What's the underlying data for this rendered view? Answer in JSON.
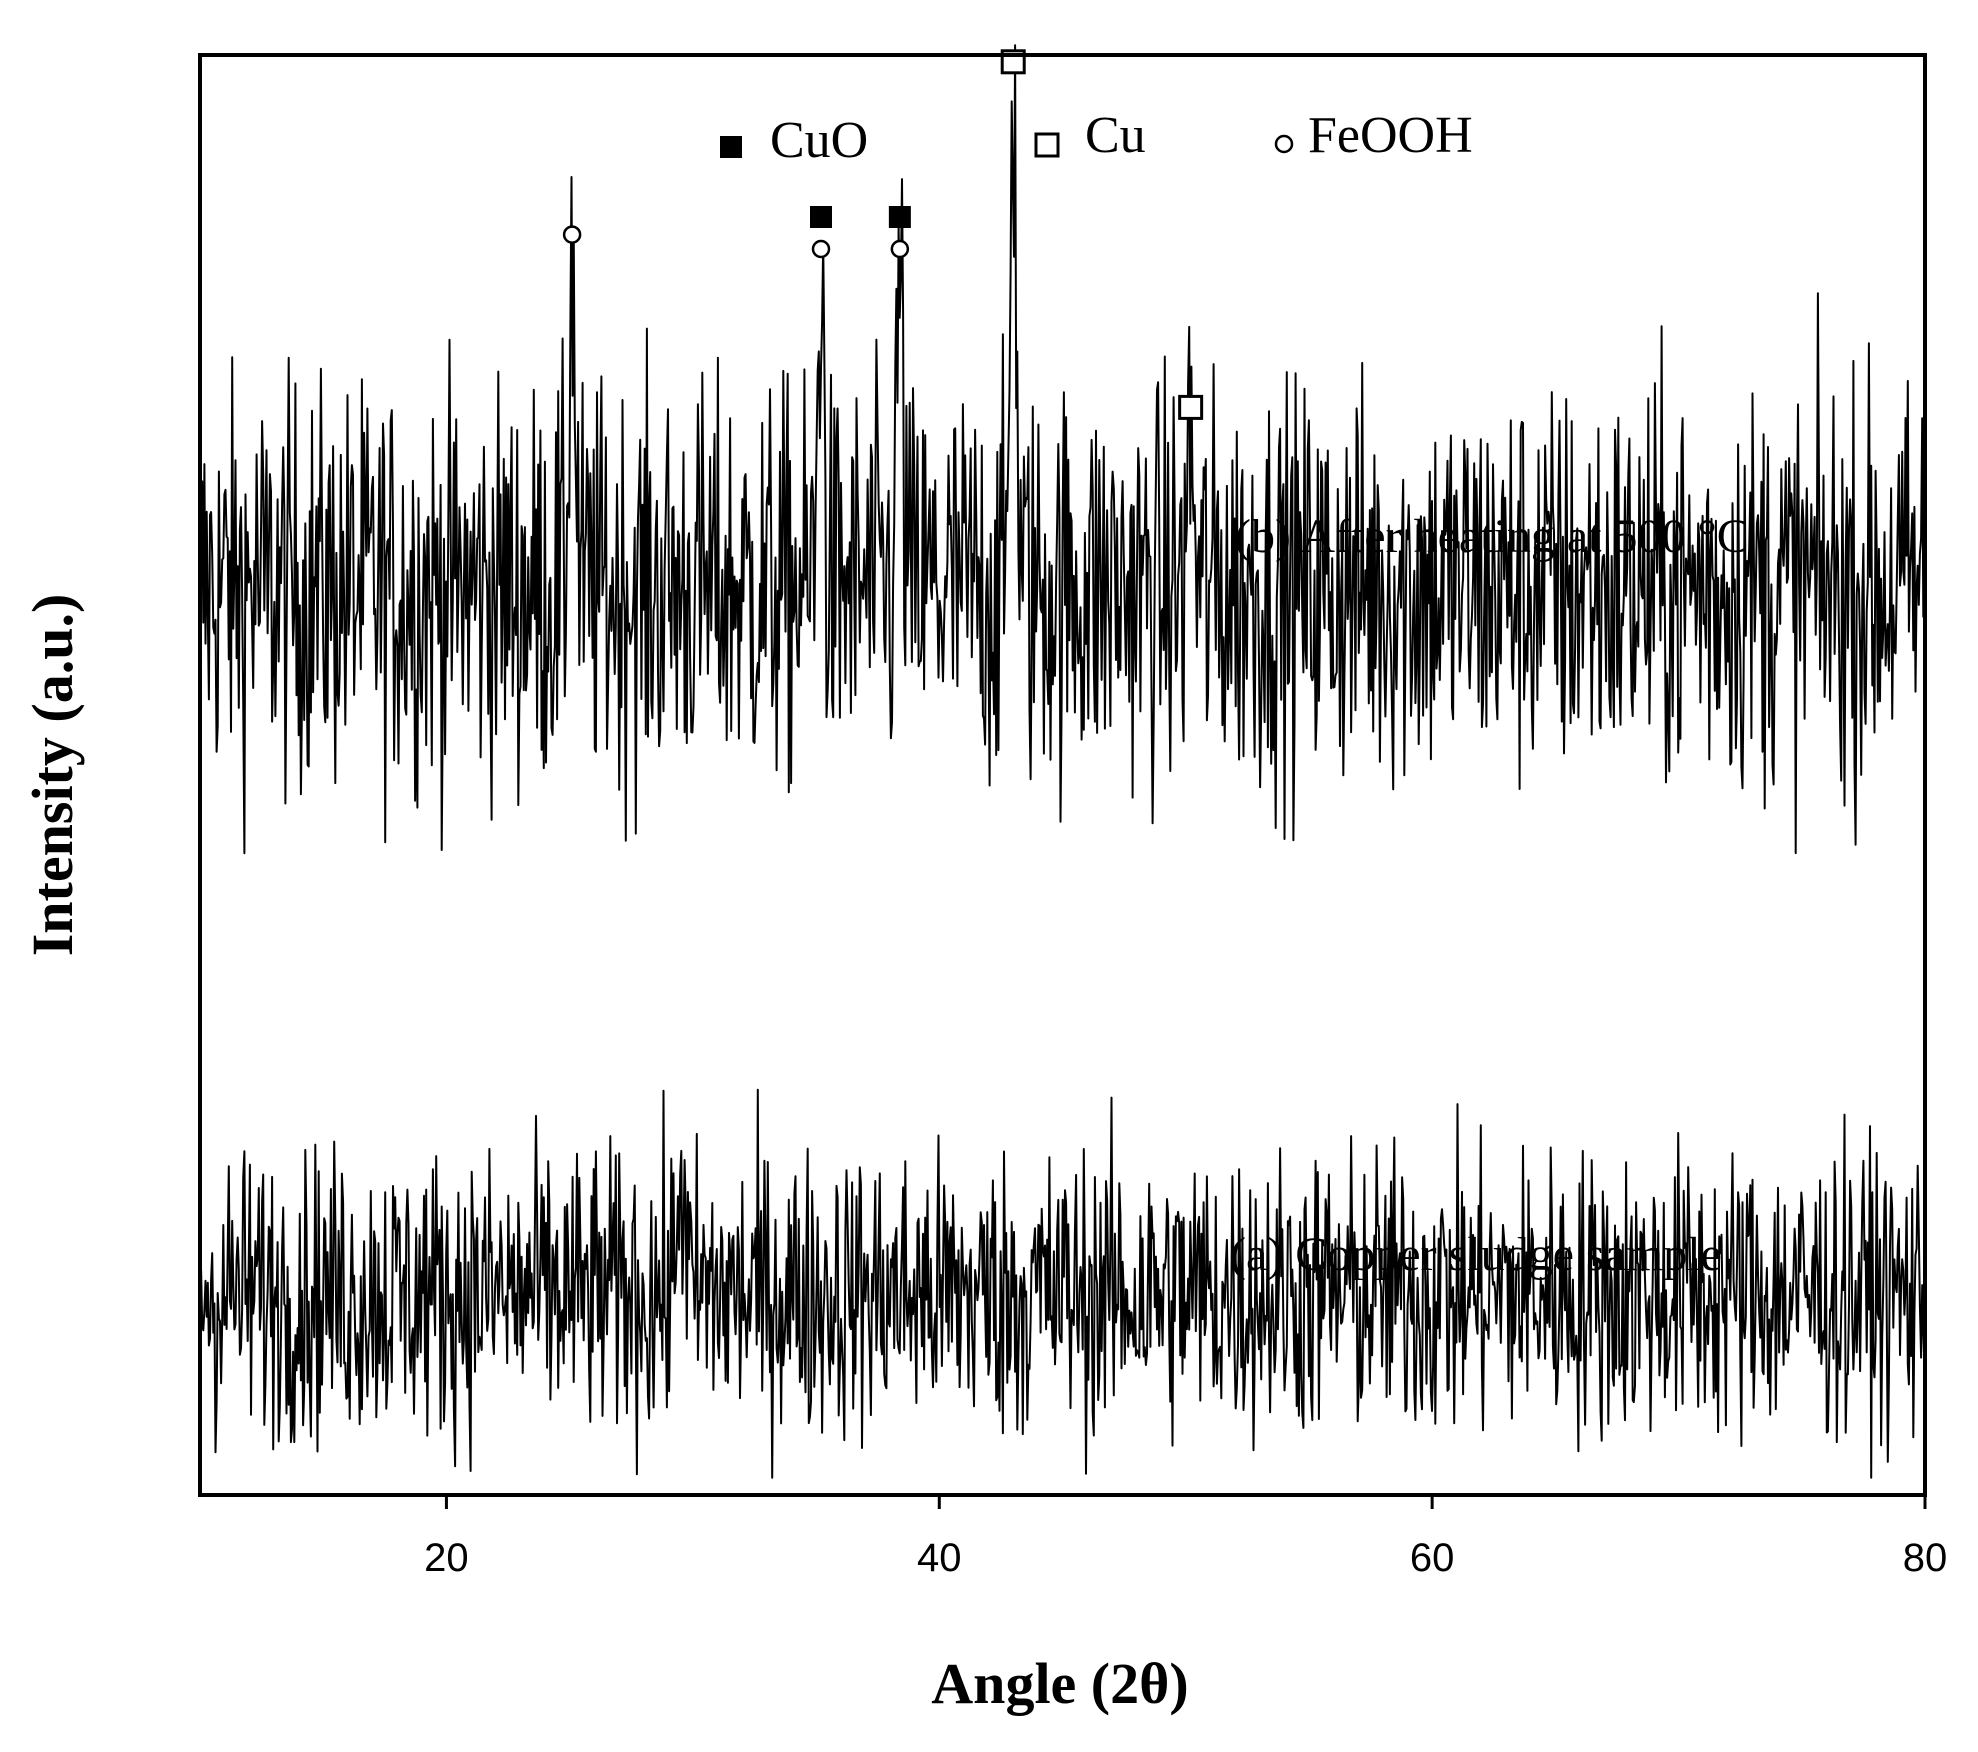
{
  "chart_data": {
    "type": "line",
    "xlabel": "Angle (2θ)",
    "ylabel": "Intensity (a.u.)",
    "xlim": [
      10,
      80
    ],
    "x_ticks": [
      "20",
      "40",
      "60",
      "80"
    ],
    "y_ticks": [],
    "grid": false,
    "legend": {
      "placement": "top",
      "entries": [
        {
          "name": "CuO",
          "marker": "filled-square"
        },
        {
          "name": "Cu",
          "marker": "open-square"
        },
        {
          "name": "FeOOH",
          "marker": "open-circle"
        }
      ]
    },
    "series": [
      {
        "name": "(b) After heating at 500 °C",
        "baseline": 0.63,
        "noise": 0.07,
        "peaks": [
          {
            "x": 25.1,
            "height": 0.23,
            "markers": [
              "open-circle"
            ]
          },
          {
            "x": 35.2,
            "height": 0.22,
            "markers": [
              "filled-square",
              "open-circle"
            ]
          },
          {
            "x": 38.4,
            "height": 0.22,
            "markers": [
              "filled-square",
              "open-circle"
            ]
          },
          {
            "x": 43.0,
            "height": 0.35,
            "markers": [
              "open-square"
            ]
          },
          {
            "x": 50.2,
            "height": 0.11,
            "markers": [
              "open-square"
            ]
          }
        ]
      },
      {
        "name": "(a) Copper sludge sample",
        "baseline": 0.14,
        "noise": 0.05,
        "peaks": [
          {
            "x": 29.5,
            "height": 0.1,
            "markers": []
          }
        ]
      }
    ]
  }
}
